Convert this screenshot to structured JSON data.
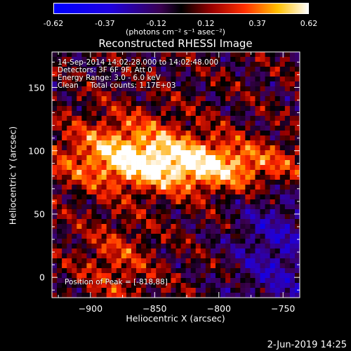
{
  "colorbar": {
    "tick_labels": [
      "-0.62",
      "-0.37",
      "-0.12",
      "0.12",
      "0.37",
      "0.62"
    ],
    "tick_values": [
      -0.62,
      -0.37,
      -0.12,
      0.12,
      0.37,
      0.62
    ],
    "range": [
      -0.62,
      0.62
    ],
    "unit": "(photons cm⁻² s⁻¹ asec⁻²)",
    "colormap": "RHESSI hot-with-negative-blue"
  },
  "annotations": {
    "time": "14-Sep-2014 14:02:28.000 to 14:02:48.000",
    "detectors": "Detectors: 3F 6F 9F, Att 0",
    "energy": "Energy Range: 3.0 - 6.0 keV",
    "method": "Clean     Total counts: 1.17E+03",
    "peak": "Position of Peak = [-818,88]"
  },
  "footer": {
    "date": "2-Jun-2019 14:25"
  },
  "chart_data": {
    "type": "heatmap",
    "title": "Reconstructed RHESSI Image",
    "xlabel": "Heliocentric X (arcsec)",
    "ylabel": "Heliocentric Y (arcsec)",
    "xlim": [
      -930,
      -737
    ],
    "ylim": [
      -16,
      178
    ],
    "x_ticks": [
      -900,
      -850,
      -800,
      -750
    ],
    "x_tick_labels": [
      "−900",
      "−850",
      "−800",
      "−750"
    ],
    "y_ticks": [
      0,
      50,
      100,
      150
    ],
    "y_tick_labels": [
      "0",
      "50",
      "100",
      "150"
    ],
    "peak": [
      -818,
      88
    ],
    "grid": false,
    "colors": {
      "background": "#000000",
      "frame": "#ffffff"
    }
  }
}
